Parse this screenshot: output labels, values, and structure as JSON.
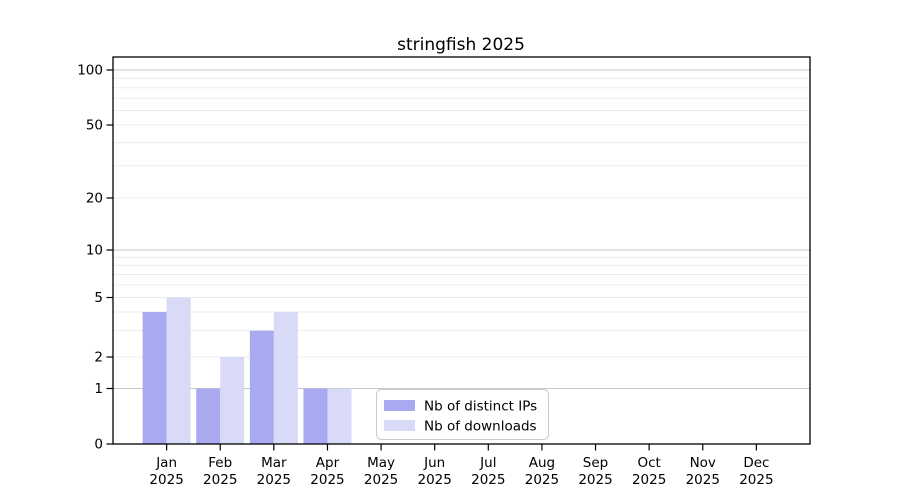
{
  "chart_data": {
    "type": "bar",
    "title": "stringfish 2025",
    "categories": [
      "Jan",
      "Feb",
      "Mar",
      "Apr",
      "May",
      "Jun",
      "Jul",
      "Aug",
      "Sep",
      "Oct",
      "Nov",
      "Dec"
    ],
    "x_tick_year": "2025",
    "series": [
      {
        "name": "Nb of distinct IPs",
        "color": "#a9a9f2",
        "values": [
          4,
          1,
          3,
          1,
          0,
          0,
          0,
          0,
          0,
          0,
          0,
          0
        ]
      },
      {
        "name": "Nb of downloads",
        "color": "#d9d9f8",
        "values": [
          5,
          2,
          4,
          1,
          0,
          0,
          0,
          0,
          0,
          0,
          0,
          0
        ]
      }
    ],
    "y_ticks": [
      0,
      1,
      2,
      5,
      10,
      20,
      50,
      100
    ],
    "y_minor_gridlines": [
      3,
      4,
      6,
      7,
      8,
      9,
      30,
      40,
      60,
      70,
      80,
      90
    ],
    "ylim": [
      0,
      100
    ],
    "yscale": "log-like with 0 baseline",
    "grid": true,
    "legend": {
      "entries": [
        "Nb of distinct IPs",
        "Nb of downloads"
      ],
      "position": "inside-bottom-center"
    },
    "colors": {
      "axis": "#000000",
      "decade_grid": "#c6c6c6",
      "minor_grid": "#ececec",
      "legend_border": "#cccccc",
      "background": "#ffffff"
    }
  }
}
